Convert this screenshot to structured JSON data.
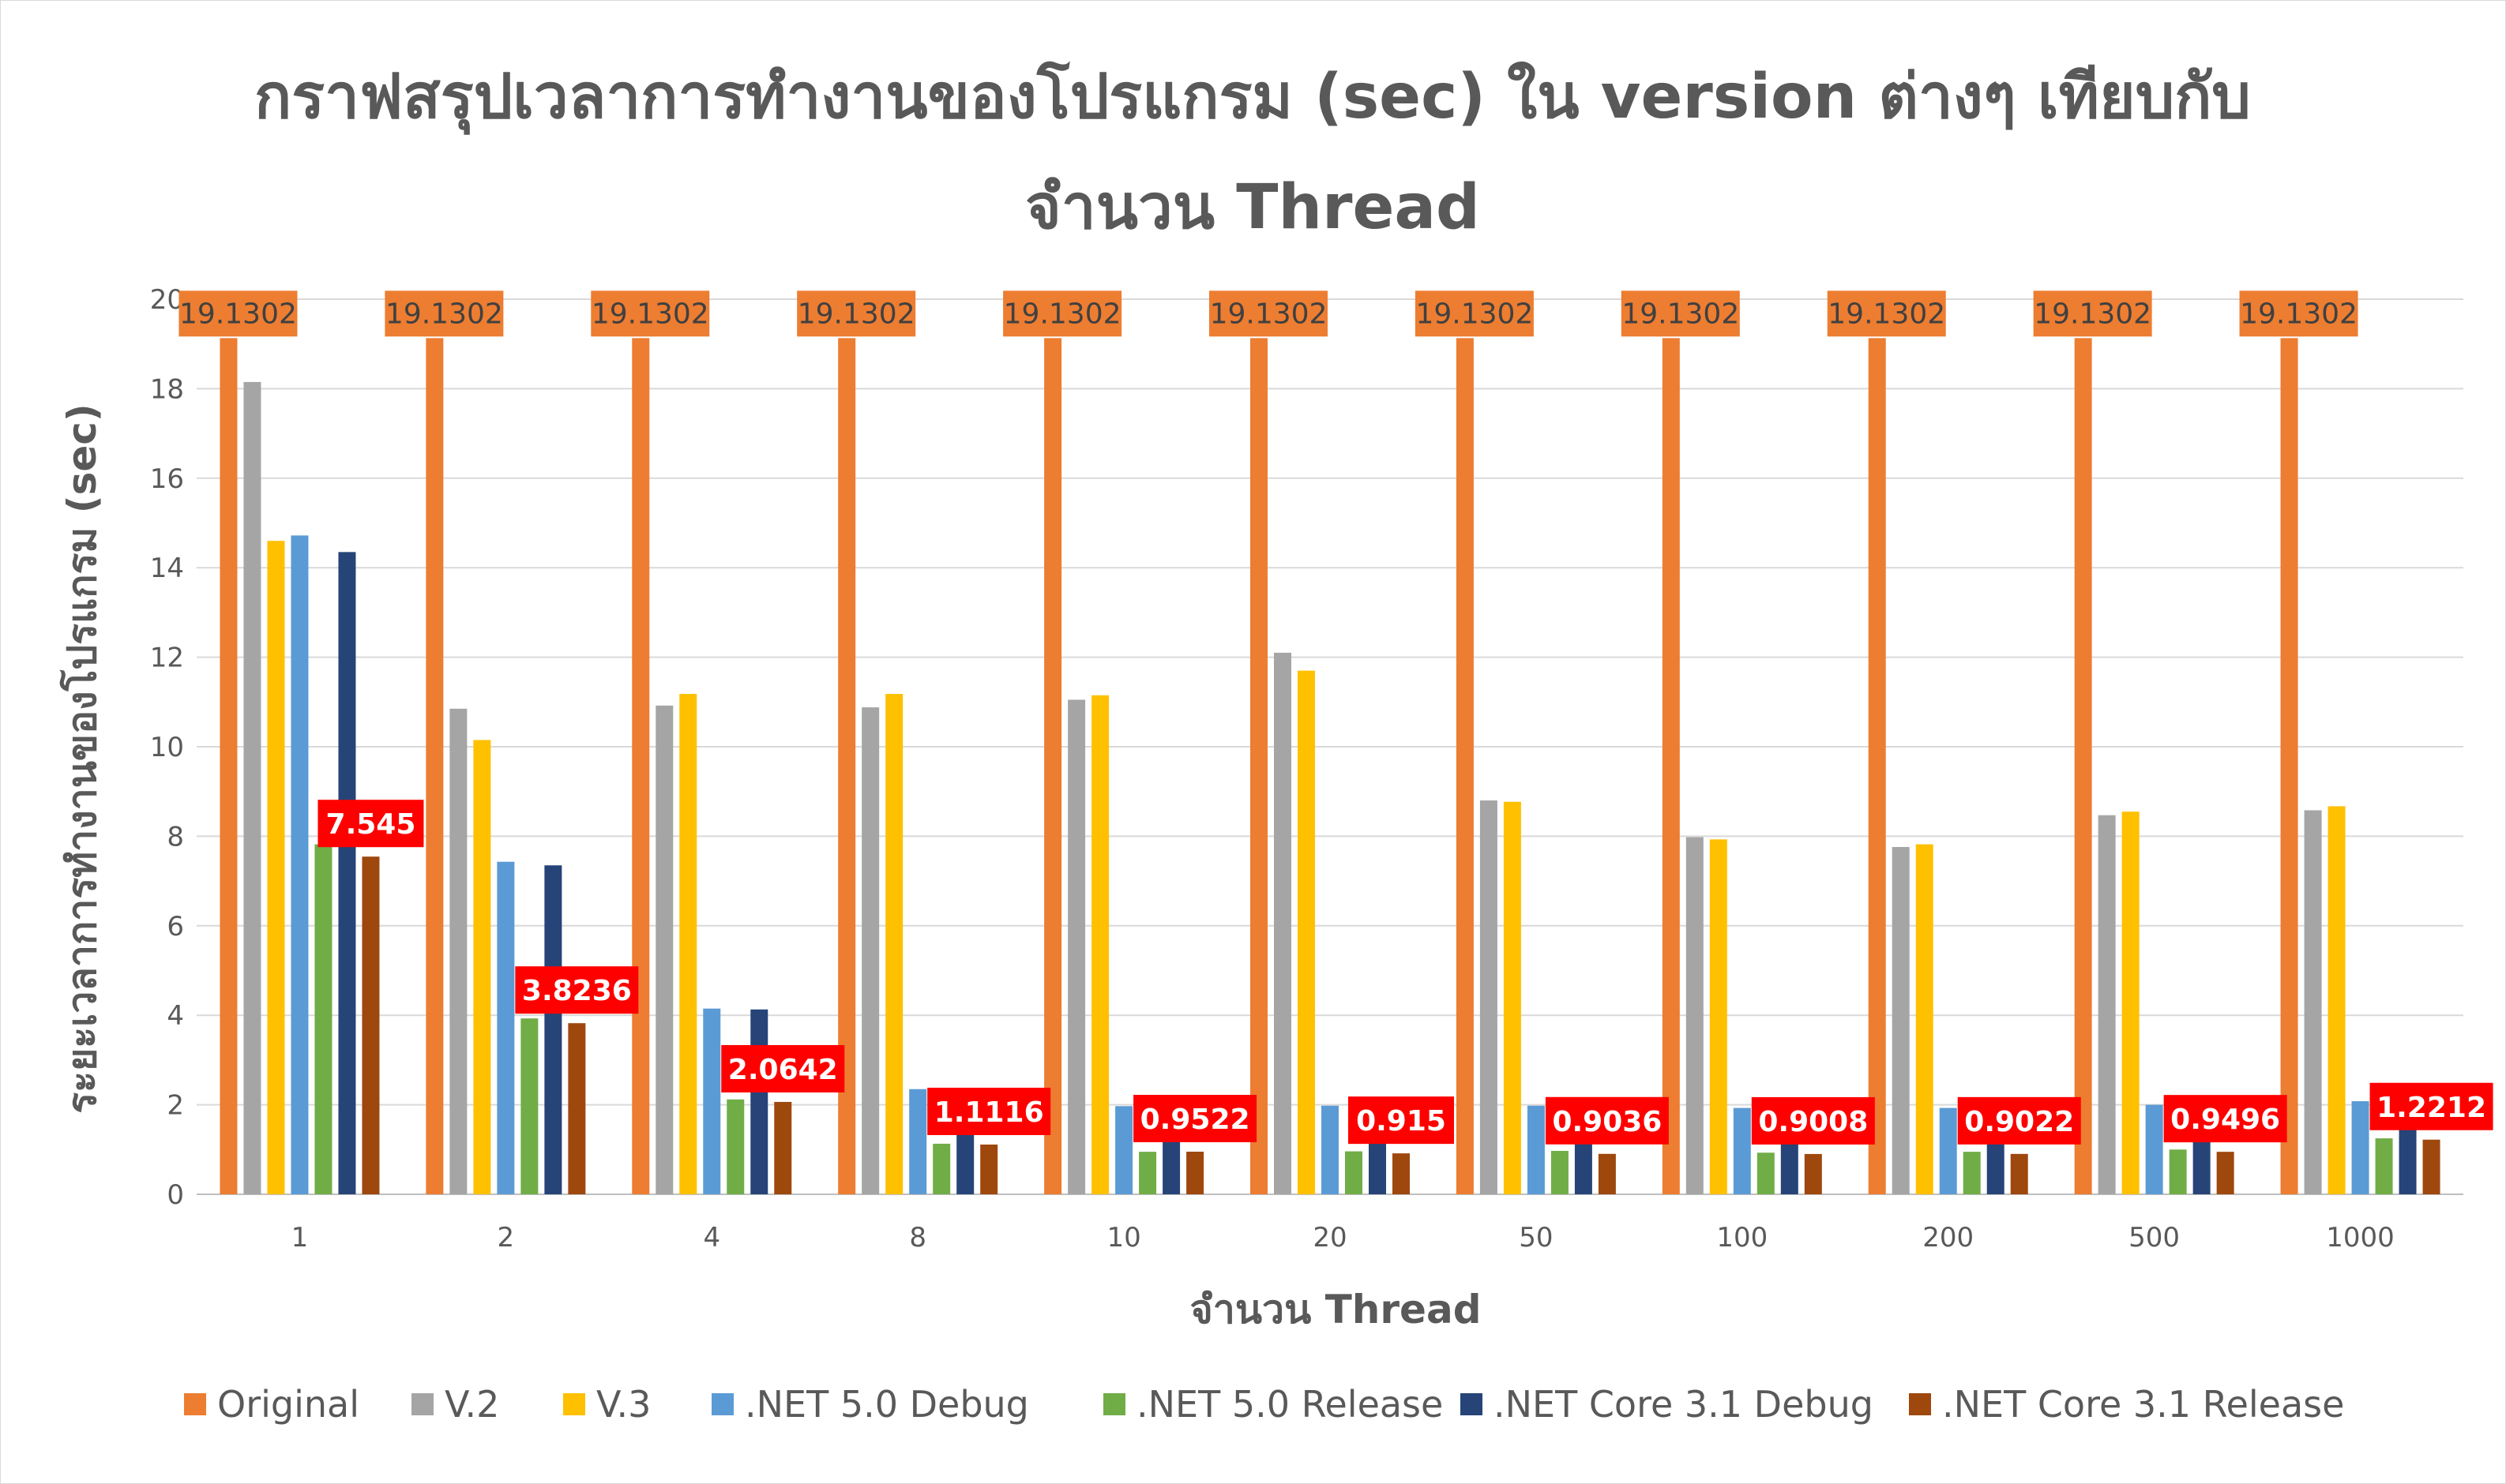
{
  "chart_data": {
    "type": "bar",
    "title_lines": [
      "กราฟสรุปเวลาการทำงานของโปรแกรม (sec) ใน version ต่างๆ เทียบกับ",
      "จำนวน Thread"
    ],
    "xlabel": "จำนวน Thread",
    "ylabel": "ระยะเวลาการทำงานของโปรแกรม (sec)",
    "ylim": [
      0,
      20
    ],
    "yticks": [
      0,
      2,
      4,
      6,
      8,
      10,
      12,
      14,
      16,
      18,
      20
    ],
    "grid": true,
    "legend_position": "bottom",
    "categories": [
      "1",
      "2",
      "4",
      "8",
      "10",
      "20",
      "50",
      "100",
      "200",
      "500",
      "1000"
    ],
    "series": [
      {
        "name": "Original",
        "color": "#ED7D31",
        "values": [
          19.1302,
          19.1302,
          19.1302,
          19.1302,
          19.1302,
          19.1302,
          19.1302,
          19.1302,
          19.1302,
          19.1302,
          19.1302
        ],
        "data_labels": [
          "19.1302",
          "19.1302",
          "19.1302",
          "19.1302",
          "19.1302",
          "19.1302",
          "19.1302",
          "19.1302",
          "19.1302",
          "19.1302",
          "19.1302"
        ]
      },
      {
        "name": "V.2",
        "color": "#A5A5A5",
        "values": [
          18.15,
          10.85,
          10.92,
          10.88,
          11.05,
          12.1,
          8.8,
          7.98,
          7.76,
          8.47,
          8.58
        ]
      },
      {
        "name": "V.3",
        "color": "#FFC000",
        "values": [
          14.6,
          10.15,
          11.18,
          11.18,
          11.15,
          11.7,
          8.77,
          7.93,
          7.82,
          8.55,
          8.67
        ]
      },
      {
        "name": ".NET 5.0 Debug",
        "color": "#5B9BD5",
        "values": [
          14.72,
          7.43,
          4.15,
          2.35,
          1.97,
          1.98,
          1.98,
          1.93,
          1.93,
          2.0,
          2.08
        ]
      },
      {
        "name": ".NET 5.0 Release",
        "color": "#70AD47",
        "values": [
          7.82,
          3.93,
          2.12,
          1.13,
          0.95,
          0.96,
          0.97,
          0.93,
          0.95,
          1.0,
          1.25
        ]
      },
      {
        "name": ".NET Core 3.1 Debug",
        "color": "#264478",
        "values": [
          14.35,
          7.35,
          4.13,
          1.6,
          1.37,
          1.35,
          1.37,
          1.35,
          1.35,
          1.38,
          1.6
        ]
      },
      {
        "name": ".NET Core 3.1 Release",
        "color": "#9E480E",
        "values": [
          7.545,
          3.8236,
          2.0642,
          1.1116,
          0.9522,
          0.915,
          0.9036,
          0.9008,
          0.9022,
          0.9496,
          1.2212
        ],
        "data_labels": [
          "7.545",
          "3.8236",
          "2.0642",
          "1.1116",
          "0.9522",
          "0.915",
          "0.9036",
          "0.9008",
          "0.9022",
          "0.9496",
          "1.2212"
        ]
      }
    ]
  }
}
